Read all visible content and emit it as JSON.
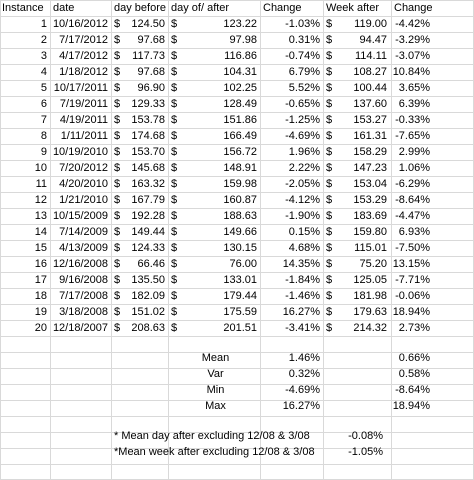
{
  "headers": {
    "instance": "Instance",
    "date": "date",
    "day_before": "day before",
    "day_of": "day of/ after",
    "change": "Change",
    "week_after": "Week after",
    "change2": "Change"
  },
  "currency_symbol": "$",
  "rows": [
    {
      "n": "1",
      "date": "10/16/2012",
      "before": "124.50",
      "dayof": "123.22",
      "chg": "-1.03%",
      "week": "119.00",
      "chg2": "-4.42%"
    },
    {
      "n": "2",
      "date": "7/17/2012",
      "before": "97.68",
      "dayof": "97.98",
      "chg": "0.31%",
      "week": "94.47",
      "chg2": "-3.29%"
    },
    {
      "n": "3",
      "date": "4/17/2012",
      "before": "117.73",
      "dayof": "116.86",
      "chg": "-0.74%",
      "week": "114.11",
      "chg2": "-3.07%"
    },
    {
      "n": "4",
      "date": "1/18/2012",
      "before": "97.68",
      "dayof": "104.31",
      "chg": "6.79%",
      "week": "108.27",
      "chg2": "10.84%"
    },
    {
      "n": "5",
      "date": "10/17/2011",
      "before": "96.90",
      "dayof": "102.25",
      "chg": "5.52%",
      "week": "100.44",
      "chg2": "3.65%"
    },
    {
      "n": "6",
      "date": "7/19/2011",
      "before": "129.33",
      "dayof": "128.49",
      "chg": "-0.65%",
      "week": "137.60",
      "chg2": "6.39%"
    },
    {
      "n": "7",
      "date": "4/19/2011",
      "before": "153.78",
      "dayof": "151.86",
      "chg": "-1.25%",
      "week": "153.27",
      "chg2": "-0.33%"
    },
    {
      "n": "8",
      "date": "1/11/2011",
      "before": "174.68",
      "dayof": "166.49",
      "chg": "-4.69%",
      "week": "161.31",
      "chg2": "-7.65%"
    },
    {
      "n": "9",
      "date": "10/19/2010",
      "before": "153.70",
      "dayof": "156.72",
      "chg": "1.96%",
      "week": "158.29",
      "chg2": "2.99%"
    },
    {
      "n": "10",
      "date": "7/20/2012",
      "before": "145.68",
      "dayof": "148.91",
      "chg": "2.22%",
      "week": "147.23",
      "chg2": "1.06%"
    },
    {
      "n": "11",
      "date": "4/20/2010",
      "before": "163.32",
      "dayof": "159.98",
      "chg": "-2.05%",
      "week": "153.04",
      "chg2": "-6.29%"
    },
    {
      "n": "12",
      "date": "1/21/2010",
      "before": "167.79",
      "dayof": "160.87",
      "chg": "-4.12%",
      "week": "153.29",
      "chg2": "-8.64%"
    },
    {
      "n": "13",
      "date": "10/15/2009",
      "before": "192.28",
      "dayof": "188.63",
      "chg": "-1.90%",
      "week": "183.69",
      "chg2": "-4.47%"
    },
    {
      "n": "14",
      "date": "7/14/2009",
      "before": "149.44",
      "dayof": "149.66",
      "chg": "0.15%",
      "week": "159.80",
      "chg2": "6.93%"
    },
    {
      "n": "15",
      "date": "4/13/2009",
      "before": "124.33",
      "dayof": "130.15",
      "chg": "4.68%",
      "week": "115.01",
      "chg2": "-7.50%"
    },
    {
      "n": "16",
      "date": "12/16/2008",
      "before": "66.46",
      "dayof": "76.00",
      "chg": "14.35%",
      "week": "75.20",
      "chg2": "13.15%"
    },
    {
      "n": "17",
      "date": "9/16/2008",
      "before": "135.50",
      "dayof": "133.01",
      "chg": "-1.84%",
      "week": "125.05",
      "chg2": "-7.71%"
    },
    {
      "n": "18",
      "date": "7/17/2008",
      "before": "182.09",
      "dayof": "179.44",
      "chg": "-1.46%",
      "week": "181.98",
      "chg2": "-0.06%"
    },
    {
      "n": "19",
      "date": "3/18/2008",
      "before": "151.02",
      "dayof": "175.59",
      "chg": "16.27%",
      "week": "179.63",
      "chg2": "18.94%"
    },
    {
      "n": "20",
      "date": "12/18/2007",
      "before": "208.63",
      "dayof": "201.51",
      "chg": "-3.41%",
      "week": "214.32",
      "chg2": "2.73%"
    }
  ],
  "stats": [
    {
      "label": "Mean",
      "chg": "1.46%",
      "chg2": "0.66%"
    },
    {
      "label": "Var",
      "chg": "0.32%",
      "chg2": "0.58%"
    },
    {
      "label": "Min",
      "chg": "-4.69%",
      "chg2": "-8.64%"
    },
    {
      "label": "Max",
      "chg": "16.27%",
      "chg2": "18.94%"
    }
  ],
  "notes": [
    {
      "text": "* Mean day after excluding 12/08 & 3/08",
      "value": "-0.08%"
    },
    {
      "text": "*Mean week after excluding 12/08 & 3/08",
      "value": "-1.05%"
    }
  ]
}
